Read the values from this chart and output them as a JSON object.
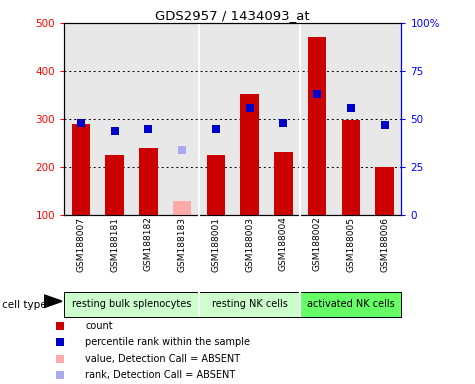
{
  "title": "GDS2957 / 1434093_at",
  "samples": [
    "GSM188007",
    "GSM188181",
    "GSM188182",
    "GSM188183",
    "GSM188001",
    "GSM188003",
    "GSM188004",
    "GSM188002",
    "GSM188005",
    "GSM188006"
  ],
  "counts": [
    290,
    225,
    240,
    null,
    225,
    352,
    232,
    470,
    297,
    200
  ],
  "counts_absent": [
    null,
    null,
    null,
    130,
    null,
    null,
    null,
    null,
    null,
    null
  ],
  "percentile_ranks": [
    48,
    44,
    45,
    null,
    45,
    56,
    48,
    63,
    56,
    47
  ],
  "percentile_ranks_absent": [
    null,
    null,
    null,
    34,
    null,
    null,
    null,
    null,
    null,
    null
  ],
  "ylim_left": [
    100,
    500
  ],
  "ylim_right": [
    0,
    100
  ],
  "yticks_left": [
    100,
    200,
    300,
    400,
    500
  ],
  "yticks_right": [
    0,
    25,
    50,
    75,
    100
  ],
  "yticklabels_right": [
    "0",
    "25",
    "50",
    "75",
    "100%"
  ],
  "cell_groups": [
    {
      "label": "resting bulk splenocytes",
      "start": 0,
      "end": 4,
      "color": "#ccffcc"
    },
    {
      "label": "resting NK cells",
      "start": 4,
      "end": 7,
      "color": "#ccffcc"
    },
    {
      "label": "activated NK cells",
      "start": 7,
      "end": 10,
      "color": "#66ff66"
    }
  ],
  "bar_color": "#cc0000",
  "bar_absent_color": "#ffaaaa",
  "dot_color": "#0000cc",
  "dot_absent_color": "#aaaaee",
  "bg_color": "#e8e8e8",
  "bar_width": 0.55,
  "dot_size": 35,
  "separators": [
    3.5,
    6.5
  ],
  "legend_items": [
    {
      "label": "count",
      "color": "#cc0000"
    },
    {
      "label": "percentile rank within the sample",
      "color": "#0000cc"
    },
    {
      "label": "value, Detection Call = ABSENT",
      "color": "#ffaaaa"
    },
    {
      "label": "rank, Detection Call = ABSENT",
      "color": "#aaaaee"
    }
  ]
}
